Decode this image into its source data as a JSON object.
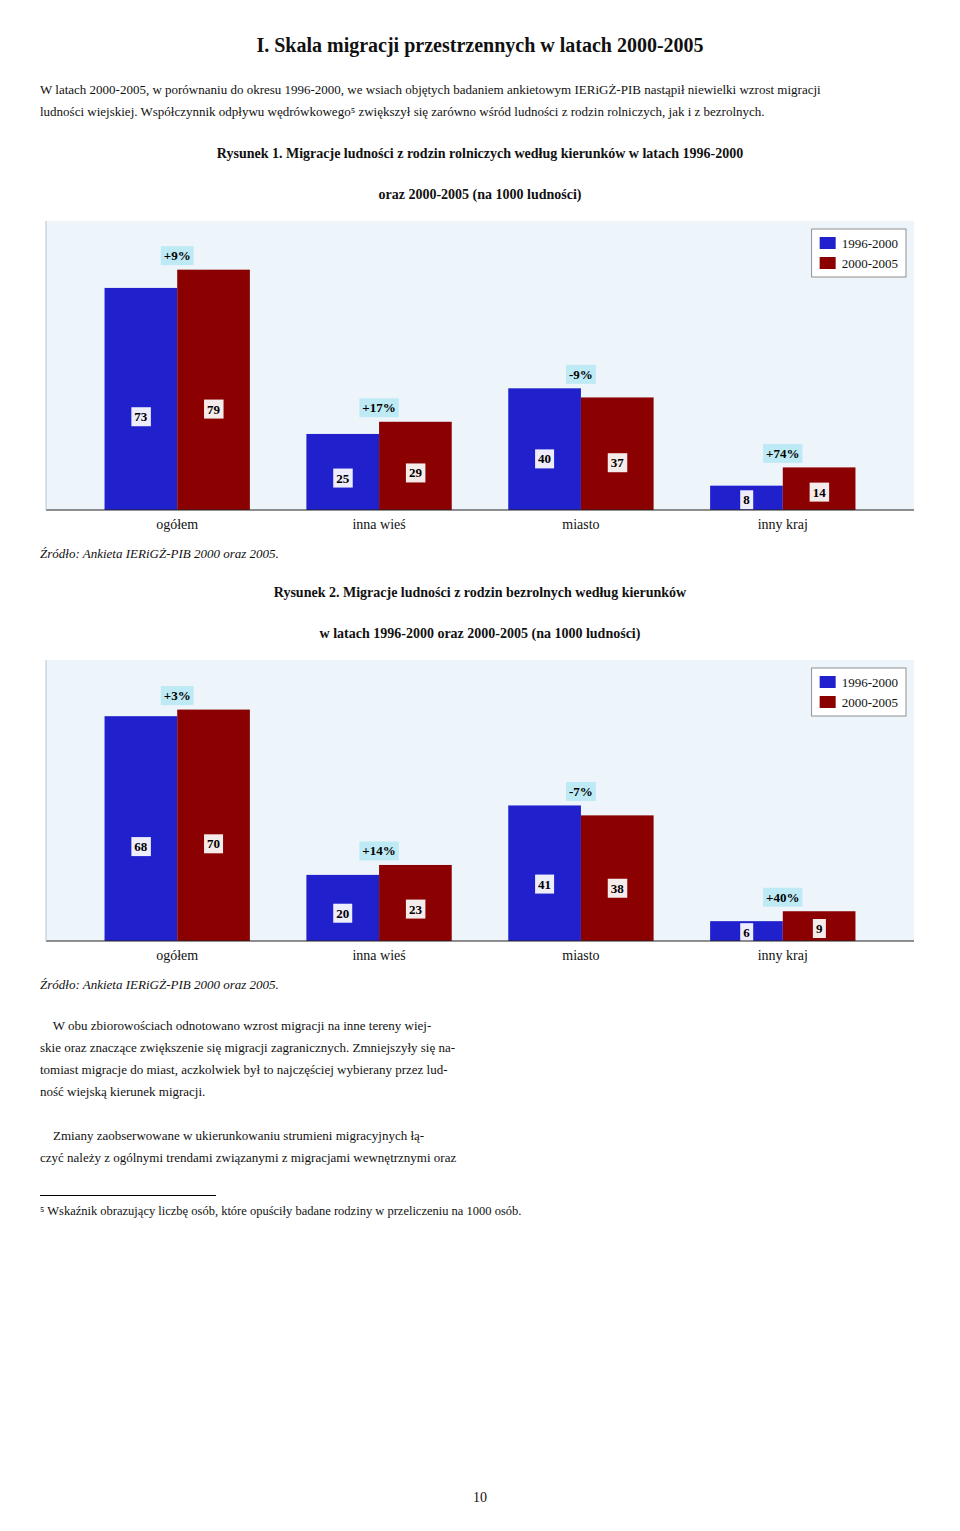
{
  "title": "I. Skala migracji przestrzennych w latach 2000-2005",
  "paragraphs": [
    [
      "W latach 2000-2005, w porównaniu do okresu 1996-2000, we wsiach objętych badaniem ankietowym IERiGŻ-PIB nastąpił niewielki wzrost migracji",
      "ludności wiejskiej. Współczynnik odpływu wędrówkowego⁵ zwiększył się zarówno wśród ludności z rodzin rolniczych, jak i z bezrolnych."
    ],
    [
      "    W obu zbiorowościach odnotowano wzrost migracji na inne tereny wiej-",
      "skie oraz znaczące zwiększenie się migracji zagranicznych. Zmniejszyły się na-",
      "tomiast migracje do miast, aczkolwiek był to najczęściej wybierany przez lud-",
      "ność wiejską kierunek migracji."
    ],
    [
      "    Zmiany zaobserwowane w ukierunkowaniu strumieni migracyjnych łą-",
      "czyć należy z ogólnymi trendami związanymi z migracjami wewnętrznymi oraz"
    ]
  ],
  "footnote": "⁵ Wskaźnik obrazujący liczbę osób, które opuściły badane rodziny w przeliczeniu na 1000 osób.",
  "page_number": "10",
  "chart_data": [
    {
      "type": "bar",
      "title": "Rysunek 1. Migracje ludności z rodzin rolniczych według kierunków w latach 1996-2000",
      "subtitle": "oraz 2000-2005 (na 1000 ludności)",
      "categories": [
        "ogółem",
        "inna wieś",
        "miasto",
        "inny kraj"
      ],
      "series": [
        {
          "name": "1996-2000",
          "color": "#2020cc",
          "values": [
            73,
            25,
            40,
            8
          ]
        },
        {
          "name": "2000-2005",
          "color": "#8b0000",
          "values": [
            79,
            29,
            37,
            14
          ]
        }
      ],
      "annotations": [
        "+9%",
        "+17%",
        "-9%",
        "+74%"
      ],
      "ylim": [
        0,
        95
      ],
      "data_labels": true,
      "tick_labels": "x",
      "legend": "upper right",
      "source": "Źródło: Ankieta IERiGŻ-PIB 2000 oraz 2005."
    },
    {
      "type": "bar",
      "title": "Rysunek 2. Migracje ludności z rodzin bezrolnych według kierunków",
      "subtitle": "w latach 1996-2000 oraz 2000-2005 (na 1000 ludności)",
      "categories": [
        "ogółem",
        "inna wieś",
        "miasto",
        "inny kraj"
      ],
      "series": [
        {
          "name": "1996-2000",
          "color": "#2020cc",
          "values": [
            68,
            20,
            41,
            6
          ]
        },
        {
          "name": "2000-2005",
          "color": "#8b0000",
          "values": [
            70,
            23,
            38,
            9
          ]
        }
      ],
      "annotations": [
        "+3%",
        "+14%",
        "-7%",
        "+40%"
      ],
      "ylim": [
        0,
        85
      ],
      "data_labels": true,
      "tick_labels": "x",
      "legend": "upper right",
      "source": "Źródło: Ankieta IERiGŻ-PIB 2000 oraz 2005."
    }
  ]
}
